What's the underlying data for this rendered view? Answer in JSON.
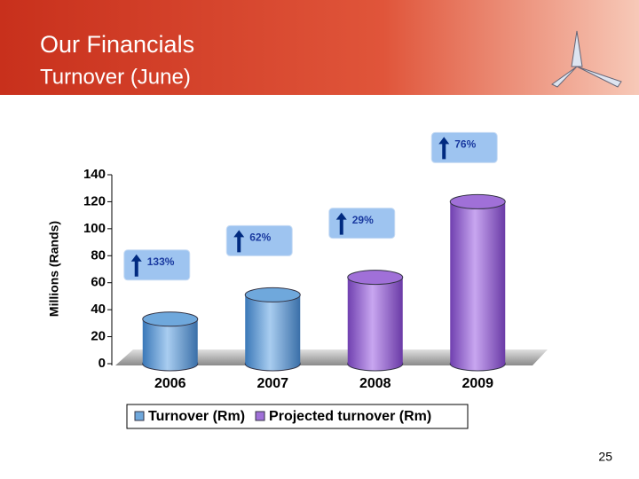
{
  "header": {
    "title": "Our Financials",
    "subtitle": "Turnover (June)"
  },
  "page_number": "25",
  "chart_data": {
    "type": "bar",
    "categories": [
      "2006",
      "2007",
      "2008",
      "2009"
    ],
    "series": [
      {
        "name": "Turnover (Rm)",
        "color": "#6fa8dc",
        "values": [
          33,
          51,
          null,
          null
        ]
      },
      {
        "name": "Projected turnover (Rm)",
        "color": "#a070d8",
        "values": [
          null,
          null,
          64,
          120
        ]
      }
    ],
    "ylabel": "Millions (Rands)",
    "annotations": [
      "133%",
      "62%",
      "29%",
      "76%"
    ],
    "ylim": [
      0,
      140
    ],
    "yticks": [
      0,
      20,
      40,
      60,
      80,
      100,
      120,
      140
    ],
    "legend": "bottom"
  }
}
